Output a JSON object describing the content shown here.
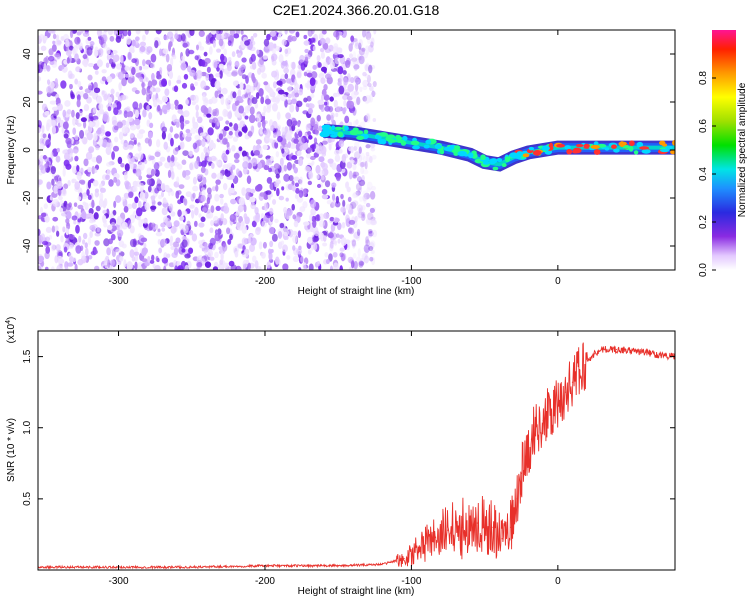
{
  "title": "C2E1.2024.366.20.01.G18",
  "colors": {
    "snr_line": "#e8302a",
    "spectrum_scatter": "#7b2cf0",
    "background": "#ffffff"
  },
  "chart_data": [
    {
      "type": "heatmap",
      "title": "C2E1.2024.366.20.01.G18",
      "xlabel": "Height of straight line (km)",
      "ylabel": "Frequency (Hz)",
      "xlim": [
        -355,
        80
      ],
      "ylim": [
        -50,
        50
      ],
      "x_ticks": [
        -300,
        -200,
        -100,
        0
      ],
      "y_ticks": [
        -40,
        -20,
        0,
        20,
        40
      ],
      "colorbar": {
        "label": "Normalized spectral amplitude",
        "range": [
          0,
          1
        ],
        "ticks": [
          0.0,
          0.2,
          0.4,
          0.6,
          0.8
        ],
        "tick_labels": [
          "0.0",
          "0.2",
          "0.4",
          "0.6",
          "0.8"
        ]
      },
      "noise_region_x": [
        -355,
        -125
      ],
      "signal_trace": {
        "x": [
          -160,
          -140,
          -120,
          -100,
          -80,
          -60,
          -50,
          -40,
          -30,
          -20,
          -10,
          0,
          10,
          20,
          40,
          60,
          80
        ],
        "y": [
          8,
          7,
          5,
          3,
          1,
          -2,
          -5,
          -6,
          -3,
          -1,
          0,
          1,
          1,
          1,
          1,
          1,
          1
        ]
      }
    },
    {
      "type": "line",
      "xlabel": "Height of straight line (km)",
      "ylabel": "SNR (10 * v/v)",
      "y_scale_label": "(x10^4)",
      "xlim": [
        -355,
        80
      ],
      "ylim": [
        0,
        1.68
      ],
      "x_ticks": [
        -300,
        -200,
        -100,
        0
      ],
      "y_ticks": [
        0.5,
        1.0,
        1.5
      ],
      "y_tick_labels": [
        "0.5",
        "1.0",
        "1.5"
      ],
      "series": [
        {
          "x": [
            -355,
            -300,
            -250,
            -200,
            -150,
            -120,
            -105,
            -95,
            -85,
            -75,
            -65,
            -55,
            -45,
            -38,
            -32,
            -28,
            -25,
            -22,
            -18,
            -15,
            -10,
            -5,
            0,
            5,
            10,
            15,
            20,
            25,
            30,
            40,
            50,
            60,
            70,
            80
          ],
          "values": [
            0.02,
            0.02,
            0.02,
            0.03,
            0.03,
            0.04,
            0.08,
            0.15,
            0.22,
            0.28,
            0.3,
            0.33,
            0.3,
            0.22,
            0.3,
            0.5,
            0.68,
            0.8,
            0.92,
            1.0,
            1.05,
            1.1,
            1.15,
            1.25,
            1.32,
            1.4,
            1.47,
            1.52,
            1.55,
            1.55,
            1.54,
            1.53,
            1.51,
            1.5
          ]
        }
      ]
    }
  ]
}
